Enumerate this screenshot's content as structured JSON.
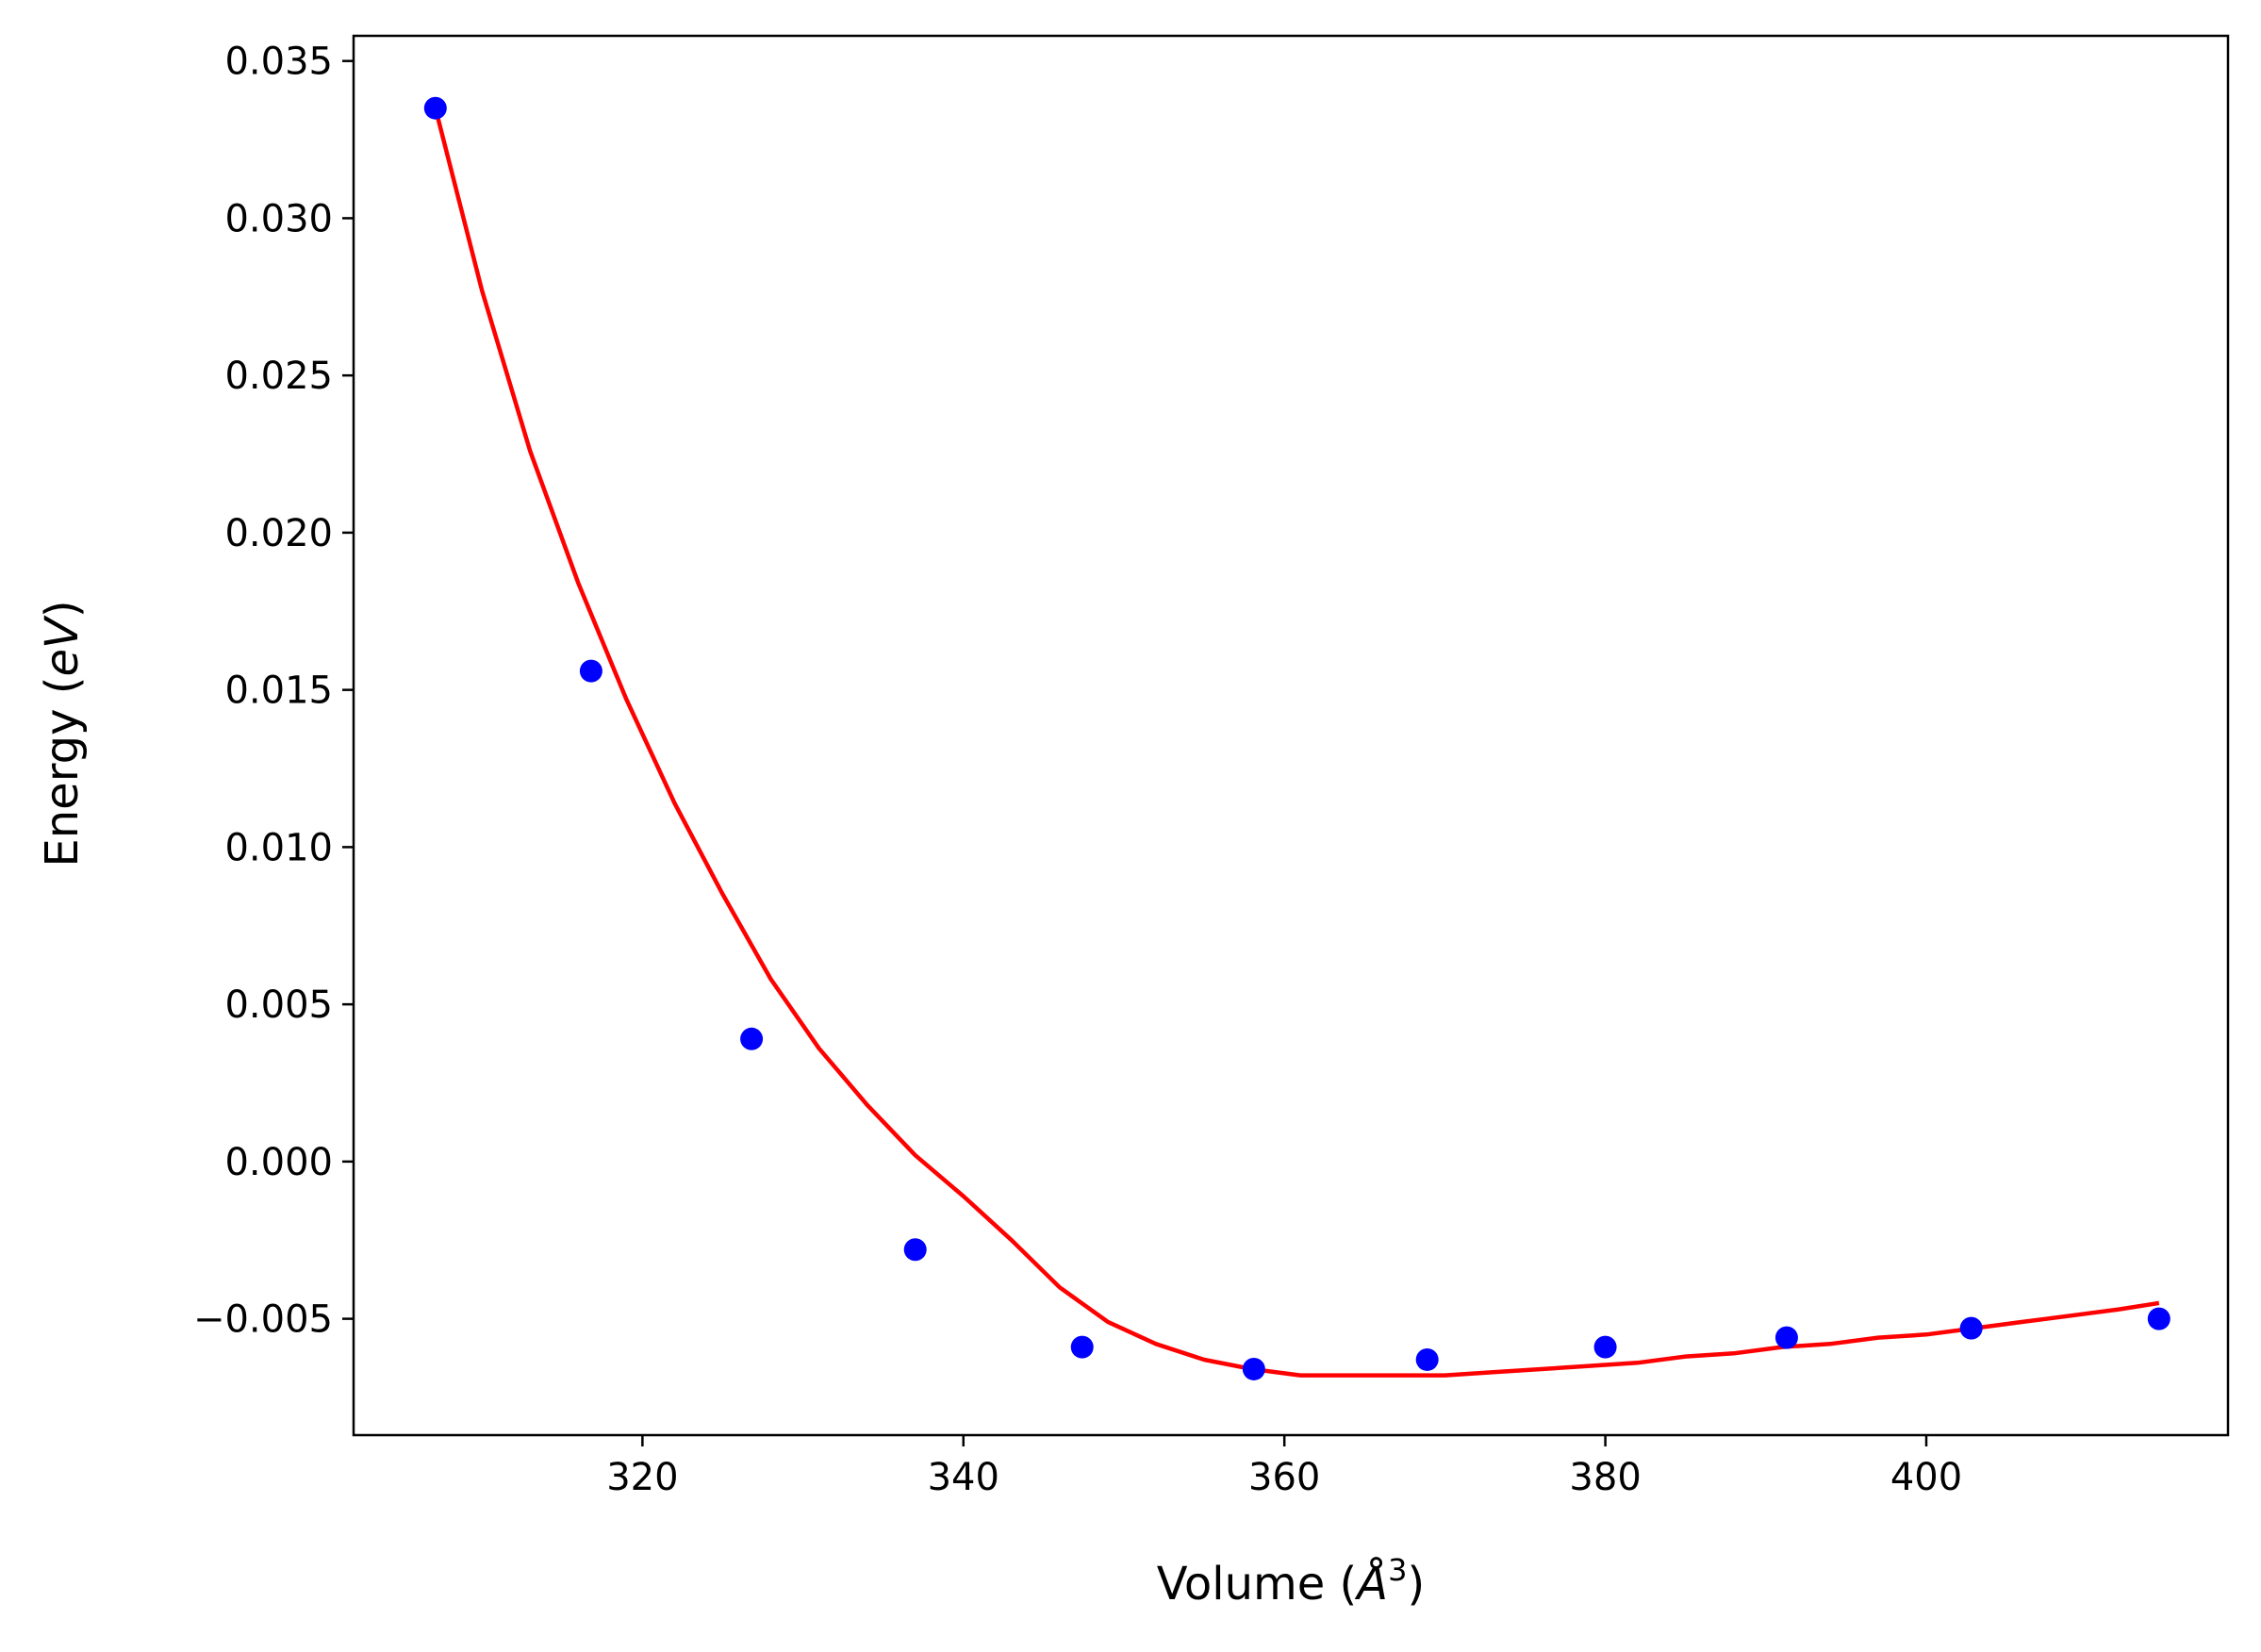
{
  "chart_data": {
    "type": "scatter",
    "xlabel_text": "Volume (",
    "xlabel_italic": "Å",
    "xlabel_sup": "3",
    "xlabel_close": ")",
    "ylabel_text": "Energy (",
    "ylabel_italic": "eV",
    "ylabel_close": ")",
    "xlim": [
      302,
      418.8
    ],
    "ylim": [
      -0.0087,
      0.0358
    ],
    "xticks": [
      320,
      340,
      360,
      380,
      400
    ],
    "xtick_labels": [
      "320",
      "340",
      "360",
      "380",
      "400"
    ],
    "yticks": [
      -0.005,
      0.0,
      0.005,
      0.01,
      0.015,
      0.02,
      0.025,
      0.03,
      0.035
    ],
    "ytick_labels": [
      "−0.005",
      "0.000",
      "0.005",
      "0.010",
      "0.015",
      "0.020",
      "0.025",
      "0.030",
      "0.035"
    ],
    "grid": false,
    "series": [
      {
        "kind": "points",
        "color": "#0000ff",
        "x": [
          307.1,
          316.8,
          326.8,
          337.0,
          347.4,
          358.1,
          368.9,
          380.0,
          391.3,
          402.8,
          414.5
        ],
        "y": [
          0.0335,
          0.0156,
          0.0039,
          -0.0028,
          -0.0059,
          -0.0066,
          -0.0063,
          -0.0059,
          -0.0056,
          -0.0053,
          -0.005
        ]
      },
      {
        "kind": "fit-curve",
        "color": "#ff0000",
        "x": [
          307.1,
          310,
          313,
          316,
          319,
          322,
          325,
          328,
          331,
          334,
          337,
          340,
          343,
          346,
          349,
          352,
          355,
          358,
          361,
          364,
          367,
          370,
          373,
          376,
          379,
          382,
          385,
          388,
          391,
          394,
          397,
          400,
          403,
          406,
          409,
          412,
          414.5
        ],
        "y": [
          0.0335,
          0.0277,
          0.0226,
          0.0184,
          0.0147,
          0.0114,
          0.0085,
          0.0058,
          0.0036,
          0.0018,
          0.0002,
          -0.0011,
          -0.0025,
          -0.004,
          -0.0051,
          -0.0058,
          -0.0063,
          -0.0066,
          -0.0068,
          -0.0068,
          -0.0068,
          -0.0068,
          -0.0067,
          -0.0066,
          -0.0065,
          -0.0064,
          -0.0062,
          -0.0061,
          -0.0059,
          -0.0058,
          -0.0056,
          -0.0055,
          -0.0053,
          -0.0051,
          -0.0049,
          -0.0047,
          -0.0045
        ]
      }
    ]
  }
}
